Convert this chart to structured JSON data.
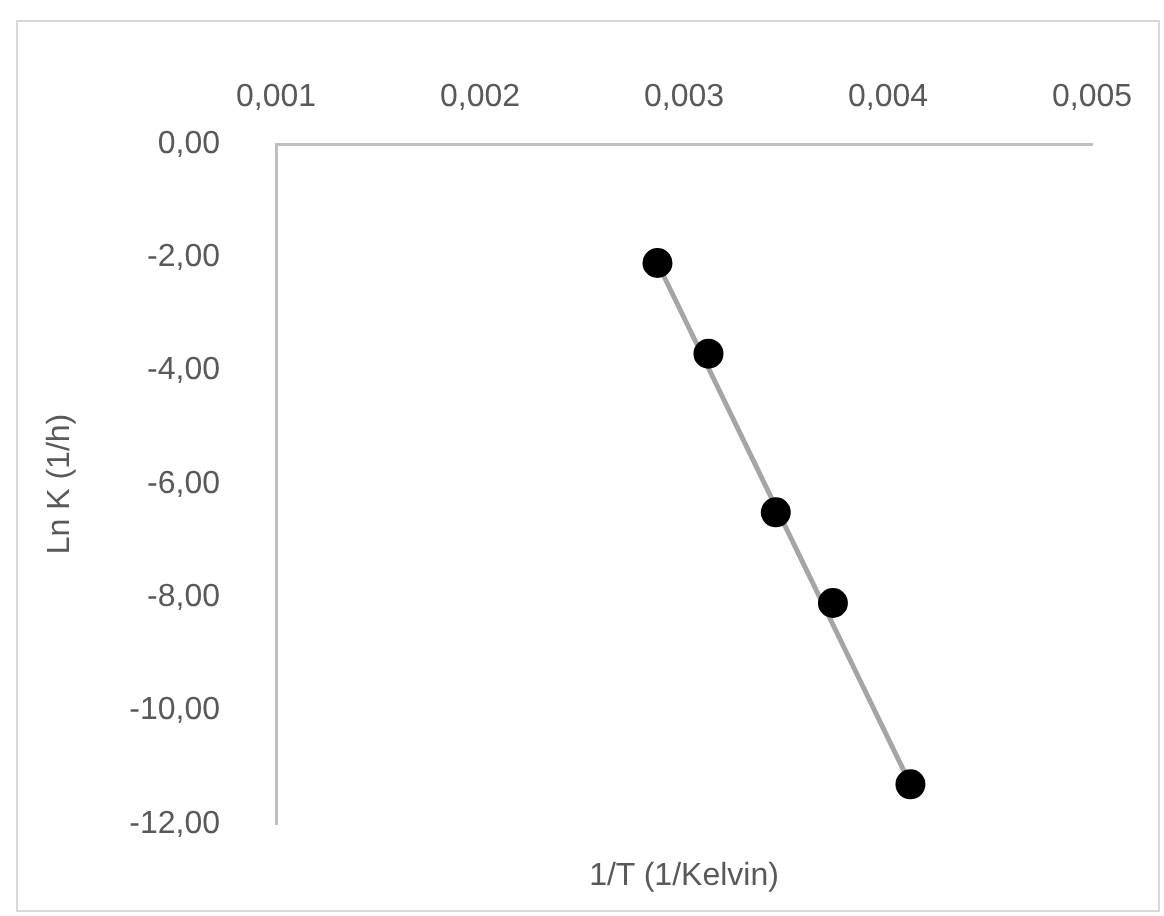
{
  "chart_data": {
    "type": "scatter",
    "xlabel": "1/T (1/Kelvin)",
    "ylabel": "Ln K (1/h)",
    "x": [
      0.00287,
      0.00312,
      0.00345,
      0.00373,
      0.00411
    ],
    "series": [
      {
        "color": "#000000",
        "marker": "circle",
        "values": [
          -2.1,
          -3.7,
          -6.5,
          -8.1,
          -11.3
        ]
      },
      {
        "type": "line",
        "marker": "none",
        "color": "#a5a5a5",
        "x": [
          0.00287,
          0.00411
        ],
        "values": [
          -2.1,
          -11.3
        ]
      }
    ],
    "xlim": [
      0.001,
      0.005
    ],
    "xticks": [
      {
        "value": 0.001,
        "label": "0,001"
      },
      {
        "value": 0.002,
        "label": "0,002"
      },
      {
        "value": 0.003,
        "label": "0,003"
      },
      {
        "value": 0.004,
        "label": "0,004"
      },
      {
        "value": 0.005,
        "label": "0,005"
      }
    ],
    "ylim": [
      -12,
      0
    ],
    "yticks": [
      {
        "value": 0,
        "label": "0,00"
      },
      {
        "value": -2,
        "label": "-2,00"
      },
      {
        "value": -4,
        "label": "-4,00"
      },
      {
        "value": -6,
        "label": "-6,00"
      },
      {
        "value": -8,
        "label": "-8,00"
      },
      {
        "value": -10,
        "label": "-10,00"
      },
      {
        "value": -12,
        "label": "-12,00"
      }
    ],
    "grid": false,
    "legend": false
  }
}
